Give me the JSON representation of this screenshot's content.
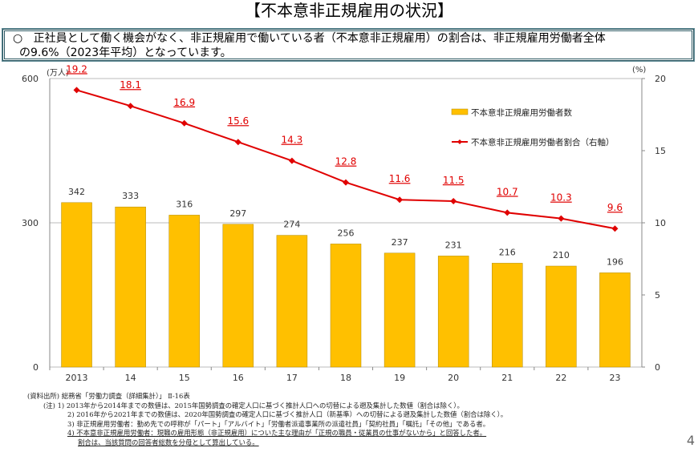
{
  "title": "【不本意非正規雇用の状況】",
  "summary": {
    "bullet": "○",
    "line1": "正社員として働く機会がなく、非正規雇用で働いている者（不本意非正規雇用）の割合は、非正規雇用労働者全体",
    "line2": "の9.6%（2023年平均）となっています。"
  },
  "chart_data": {
    "type": "bar",
    "categories": [
      "2013",
      "14",
      "15",
      "16",
      "17",
      "18",
      "19",
      "20",
      "21",
      "22",
      "23"
    ],
    "yleft": {
      "unit": "(万人)",
      "ylim": [
        0,
        600
      ],
      "ticks": [
        "0",
        "300",
        "600"
      ]
    },
    "yright": {
      "unit": "(%)",
      "ylim": [
        0,
        20
      ],
      "ticks": [
        "0",
        "5",
        "10",
        "15",
        "20"
      ]
    },
    "series": [
      {
        "name": "不本意非正規雇用労働者数",
        "type": "bar",
        "axis": "left",
        "color": "#FFC000",
        "values": [
          342,
          333,
          316,
          297,
          274,
          256,
          237,
          231,
          216,
          210,
          196
        ]
      },
      {
        "name": "不本意非正規雇用労働者割合（右軸）",
        "type": "line",
        "axis": "right",
        "color": "#E00000",
        "values": [
          19.2,
          18.1,
          16.9,
          15.6,
          14.3,
          12.8,
          11.6,
          11.5,
          10.7,
          10.3,
          9.6
        ]
      }
    ],
    "legend": "top-right"
  },
  "notes": {
    "source": "(資料出所) 総務省「労働力調査（詳細集計）」 Ⅱ-16表",
    "n1": "(注) 1) 2013年から2014年までの数値は、2015年国勢調査の確定人口に基づく推計人口への切替による遡及集計した数値（割合は除く）。",
    "n2": "2) 2016年から2021年までの数値は、2020年国勢調査の確定人口に基づく推計人口（新基準）への切替による遡及集計した数値（割合は除く）。",
    "n3": "3) 非正規雇用労働者：勤め先での呼称が「パート」「アルバイト」「労働者派遣事業所の派遣社員」「契約社員」「嘱託」「その他」である者。",
    "n4": "4) 不本意非正規雇用労働者：現職の雇用形態（非正規雇用）についた主な理由が「正規の職員・従業員の仕事がないから」と回答した者。",
    "n5": "割合は、当該質問の回答者総数を分母として算出している。"
  },
  "page_number": "4"
}
